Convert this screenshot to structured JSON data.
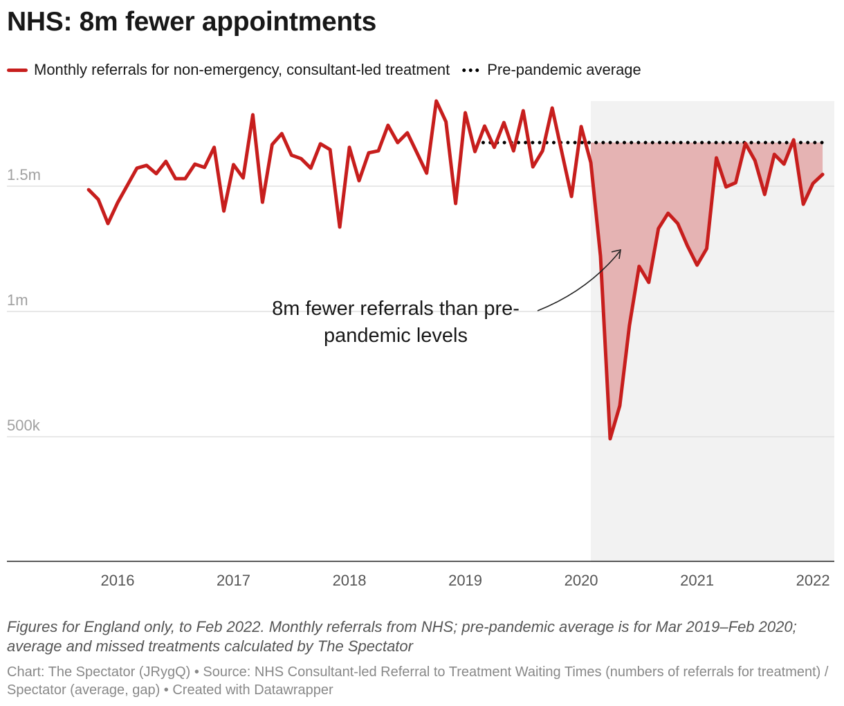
{
  "title": "NHS: 8m fewer appointments",
  "legend": [
    {
      "label": "Monthly referrals for non-emergency, consultant-led treatment",
      "color": "#c71e1d",
      "style": "line"
    },
    {
      "label": "Pre-pandemic average",
      "color": "#000000",
      "style": "dotted"
    }
  ],
  "chart_data": {
    "type": "line",
    "title": "NHS: 8m fewer appointments",
    "x_start": "2015-10",
    "x_frequency": "monthly",
    "x_end": "2022-02",
    "x_ticks": [
      "2016",
      "2017",
      "2018",
      "2019",
      "2020",
      "2021",
      "2022"
    ],
    "y_ticks": [
      {
        "value": 500000,
        "label": "500k"
      },
      {
        "value": 1000000,
        "label": "1m"
      },
      {
        "value": 1500000,
        "label": "1.5m"
      }
    ],
    "ylim": [
      0,
      1850000
    ],
    "grid": "horizontal",
    "series": [
      {
        "name": "Monthly referrals for non-emergency, consultant-led treatment",
        "color": "#c71e1d",
        "values": [
          1486000,
          1447000,
          1351000,
          1434000,
          1503000,
          1572000,
          1583000,
          1550000,
          1599000,
          1530000,
          1530000,
          1588000,
          1575000,
          1655000,
          1401000,
          1586000,
          1533000,
          1785000,
          1436000,
          1666000,
          1710000,
          1624000,
          1610000,
          1572000,
          1669000,
          1646000,
          1337000,
          1655000,
          1522000,
          1633000,
          1641000,
          1743000,
          1674000,
          1713000,
          1633000,
          1552000,
          1840000,
          1757000,
          1431000,
          1793000,
          1638000,
          1740000,
          1655000,
          1754000,
          1641000,
          1801000,
          1577000,
          1641000,
          1812000,
          1635000,
          1459000,
          1738000,
          1594000,
          1221000,
          492000,
          624000,
          945000,
          1180000,
          1116000,
          1331000,
          1392000,
          1351000,
          1262000,
          1185000,
          1251000,
          1613000,
          1497000,
          1514000,
          1671000,
          1602000,
          1467000,
          1627000,
          1588000,
          1685000,
          1428000,
          1511000,
          1547000
        ]
      },
      {
        "name": "Pre-pandemic average",
        "color": "#000000",
        "value": 1674000,
        "range": [
          "2019-03",
          "2022-02"
        ]
      }
    ],
    "highlight_period": [
      "2020-02",
      "2022-02"
    ],
    "highlight_color": "#f2f2f2",
    "gap_fill_color": "#e5b3b3",
    "annotation": {
      "text_line1": "8m fewer referrals than pre-",
      "text_line2": "pandemic levels"
    }
  },
  "footnote": "Figures for England only, to Feb 2022. Monthly referrals from NHS; pre-pandemic average is for Mar 2019–Feb 2020; average and missed treatments calculated by The Spectator",
  "credits": "Chart: The Spectator (JRygQ) • Source: NHS Consultant-led Referral to Treatment Waiting Times (numbers of referrals for treatment) / Spectator (average, gap) • Created with Datawrapper"
}
